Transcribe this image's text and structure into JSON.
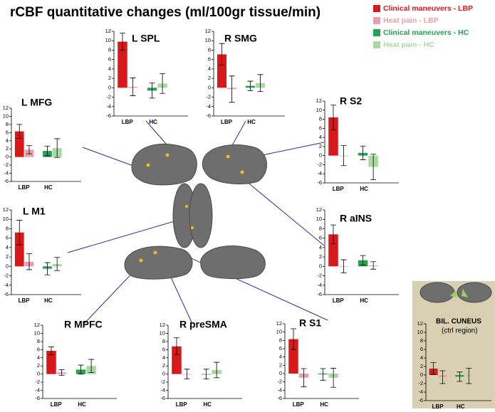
{
  "title": "rCBF quantitative changes (ml/100gr tissue/min)",
  "legend": [
    {
      "name": "Clinical maneuvers - LBP",
      "color": "#d7191c"
    },
    {
      "name": "Heat pain - LBP",
      "color": "#e9a0ab"
    },
    {
      "name": "Clinical maneuvers  - HC",
      "color": "#23a350"
    },
    {
      "name": "Heat pain - HC",
      "color": "#a9d9a0"
    }
  ],
  "chart_data": [
    {
      "type": "bar",
      "title": "L MFG",
      "categories": [
        "LBP",
        "HC"
      ],
      "ylim": [
        -6,
        12
      ],
      "yticks": [
        -6,
        -4,
        -2,
        0,
        2,
        4,
        6,
        8,
        10,
        12
      ],
      "series": [
        {
          "color": "#d7191c",
          "values": [
            6.3,
            null
          ],
          "errors": [
            1.7,
            null
          ]
        },
        {
          "color": "#e9a0ab",
          "values": [
            1.8,
            null
          ],
          "errors": [
            1.0,
            null
          ]
        },
        {
          "color": "#23a350",
          "values": [
            null,
            1.5
          ],
          "errors": [
            null,
            1.2
          ]
        },
        {
          "color": "#a9d9a0",
          "values": [
            null,
            2.2
          ],
          "errors": [
            null,
            2.3
          ]
        }
      ]
    },
    {
      "type": "bar",
      "title": "L SPL",
      "categories": [
        "LBP",
        "HC"
      ],
      "ylim": [
        -6,
        12
      ],
      "yticks": [
        -6,
        -4,
        -2,
        0,
        2,
        4,
        6,
        8,
        10,
        12
      ],
      "series": [
        {
          "color": "#d7191c",
          "values": [
            9.8,
            null
          ],
          "errors": [
            1.8,
            null
          ]
        },
        {
          "color": "#e9a0ab",
          "values": [
            0.2,
            null
          ],
          "errors": [
            1.9,
            null
          ]
        },
        {
          "color": "#23a350",
          "values": [
            null,
            -0.6
          ],
          "errors": [
            null,
            1.6
          ]
        },
        {
          "color": "#a9d9a0",
          "values": [
            null,
            0.9
          ],
          "errors": [
            null,
            2.1
          ]
        }
      ]
    },
    {
      "type": "bar",
      "title": "R SMG",
      "categories": [
        "LBP",
        "HC"
      ],
      "ylim": [
        -6,
        12
      ],
      "yticks": [
        -6,
        -4,
        -2,
        0,
        2,
        4,
        6,
        8,
        10,
        12
      ],
      "series": [
        {
          "color": "#d7191c",
          "values": [
            7.1,
            null
          ],
          "errors": [
            2.3,
            null
          ]
        },
        {
          "color": "#e9a0ab",
          "values": [
            -0.3,
            null
          ],
          "errors": [
            2.8,
            null
          ]
        },
        {
          "color": "#23a350",
          "values": [
            null,
            0.4
          ],
          "errors": [
            null,
            1.0
          ]
        },
        {
          "color": "#a9d9a0",
          "values": [
            null,
            1.0
          ],
          "errors": [
            null,
            1.8
          ]
        }
      ]
    },
    {
      "type": "bar",
      "title": "R S2",
      "categories": [
        "LBP",
        "HC"
      ],
      "ylim": [
        -6,
        12
      ],
      "yticks": [
        -6,
        -4,
        -2,
        0,
        2,
        4,
        6,
        8,
        10,
        12
      ],
      "series": [
        {
          "color": "#d7191c",
          "values": [
            8.4,
            null
          ],
          "errors": [
            2.7,
            null
          ]
        },
        {
          "color": "#e9a0ab",
          "values": [
            0.0,
            null
          ],
          "errors": [
            2.2,
            null
          ]
        },
        {
          "color": "#23a350",
          "values": [
            null,
            0.6
          ],
          "errors": [
            null,
            1.5
          ]
        },
        {
          "color": "#a9d9a0",
          "values": [
            null,
            -2.5
          ],
          "errors": [
            null,
            2.8
          ]
        }
      ]
    },
    {
      "type": "bar",
      "title": "L M1",
      "categories": [
        "LBP",
        "HC"
      ],
      "ylim": [
        -6,
        12
      ],
      "yticks": [
        -6,
        -4,
        -2,
        0,
        2,
        4,
        6,
        8,
        10,
        12
      ],
      "series": [
        {
          "color": "#d7191c",
          "values": [
            7.2,
            null
          ],
          "errors": [
            2.6,
            null
          ]
        },
        {
          "color": "#e9a0ab",
          "values": [
            1.0,
            null
          ],
          "errors": [
            1.7,
            null
          ]
        },
        {
          "color": "#23a350",
          "values": [
            null,
            -0.5
          ],
          "errors": [
            null,
            1.3
          ]
        },
        {
          "color": "#a9d9a0",
          "values": [
            null,
            0.5
          ],
          "errors": [
            null,
            1.4
          ]
        }
      ]
    },
    {
      "type": "bar",
      "title": "R aINS",
      "categories": [
        "LBP",
        "HC"
      ],
      "ylim": [
        -6,
        12
      ],
      "yticks": [
        -6,
        -4,
        -2,
        0,
        2,
        4,
        6,
        8,
        10,
        12
      ],
      "series": [
        {
          "color": "#d7191c",
          "values": [
            6.8,
            null
          ],
          "errors": [
            2.0,
            null
          ]
        },
        {
          "color": "#e9a0ab",
          "values": [
            0.0,
            null
          ],
          "errors": [
            1.4,
            null
          ]
        },
        {
          "color": "#23a350",
          "values": [
            null,
            1.3
          ],
          "errors": [
            null,
            1.0
          ]
        },
        {
          "color": "#a9d9a0",
          "values": [
            null,
            0.2
          ],
          "errors": [
            null,
            0.8
          ]
        }
      ]
    },
    {
      "type": "bar",
      "title": "R MPFC",
      "categories": [
        "LBP",
        "HC"
      ],
      "ylim": [
        -6,
        12
      ],
      "yticks": [
        -6,
        -4,
        -2,
        0,
        2,
        4,
        6,
        8,
        10,
        12
      ],
      "series": [
        {
          "color": "#d7191c",
          "values": [
            5.7,
            null
          ],
          "errors": [
            1.0,
            null
          ]
        },
        {
          "color": "#e9a0ab",
          "values": [
            0.4,
            null
          ],
          "errors": [
            0.7,
            null
          ]
        },
        {
          "color": "#23a350",
          "values": [
            null,
            1.1
          ],
          "errors": [
            null,
            1.1
          ]
        },
        {
          "color": "#a9d9a0",
          "values": [
            null,
            2.0
          ],
          "errors": [
            null,
            1.6
          ]
        }
      ]
    },
    {
      "type": "bar",
      "title": "R preSMA",
      "categories": [
        "LBP",
        "HC"
      ],
      "ylim": [
        -6,
        12
      ],
      "yticks": [
        -6,
        -4,
        -2,
        0,
        2,
        4,
        6,
        8,
        10,
        12
      ],
      "series": [
        {
          "color": "#d7191c",
          "values": [
            6.8,
            null
          ],
          "errors": [
            2.1,
            null
          ]
        },
        {
          "color": "#e9a0ab",
          "values": [
            0.0,
            null
          ],
          "errors": [
            1.2,
            null
          ]
        },
        {
          "color": "#23a350",
          "values": [
            null,
            0.0
          ],
          "errors": [
            null,
            1.2
          ]
        },
        {
          "color": "#a9d9a0",
          "values": [
            null,
            1.0
          ],
          "errors": [
            null,
            1.9
          ]
        }
      ]
    },
    {
      "type": "bar",
      "title": "R S1",
      "categories": [
        "LBP",
        "HC"
      ],
      "ylim": [
        -6,
        12
      ],
      "yticks": [
        -6,
        -4,
        -2,
        0,
        2,
        4,
        6,
        8,
        10,
        12
      ],
      "series": [
        {
          "color": "#d7191c",
          "values": [
            8.3,
            null
          ],
          "errors": [
            2.5,
            null
          ]
        },
        {
          "color": "#e9a0ab",
          "values": [
            -1.0,
            null
          ],
          "errors": [
            2.2,
            null
          ]
        },
        {
          "color": "#23a350",
          "values": [
            null,
            -0.2
          ],
          "errors": [
            null,
            1.4
          ]
        },
        {
          "color": "#a9d9a0",
          "values": [
            null,
            -1.0
          ],
          "errors": [
            null,
            2.3
          ]
        }
      ]
    },
    {
      "type": "bar",
      "title": "BIL. CUNEUS",
      "subtitle": "(ctrl region)",
      "categories": [
        "LBP",
        "HC"
      ],
      "ylim": [
        -6,
        12
      ],
      "yticks": [
        -6,
        -4,
        -2,
        0,
        2,
        4,
        6,
        8,
        10,
        12
      ],
      "series": [
        {
          "color": "#d7191c",
          "values": [
            1.5,
            null
          ],
          "errors": [
            1.4,
            null
          ]
        },
        {
          "color": "#e9a0ab",
          "values": [
            -0.5,
            null
          ],
          "errors": [
            1.5,
            null
          ]
        },
        {
          "color": "#23a350",
          "values": [
            null,
            -0.4
          ],
          "errors": [
            null,
            1.1
          ]
        },
        {
          "color": "#a9d9a0",
          "values": [
            null,
            -0.2
          ],
          "errors": [
            null,
            1.8
          ]
        }
      ]
    }
  ]
}
